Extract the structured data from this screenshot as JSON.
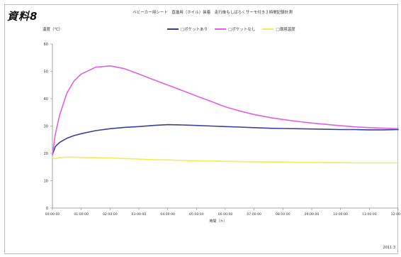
{
  "page": {
    "doc_label": "資料8",
    "footer": "2011.3"
  },
  "chart_data": {
    "type": "line",
    "title": "ベビーカー用シート　直進用（ホイル）装着　走行後もしばらくサーモ付き３時間記録計測",
    "xlabel": "時間（ｈ）",
    "ylabel": "温度（℃）",
    "ylim": [
      0,
      60
    ],
    "yticks": [
      0,
      10,
      20,
      30,
      40,
      50,
      60
    ],
    "x_ticks": [
      "00:00:00",
      "01:00:00",
      "02:00:00",
      "03:00:00",
      "04:00:00",
      "05:00:00",
      "06:00:00",
      "07:00:00",
      "08:00:00",
      "09:00:00",
      "10:00:00",
      "11:00:00",
      "12:00:00"
    ],
    "xlim": [
      0,
      12
    ],
    "grid": false,
    "legend_position": "top",
    "x": [
      0,
      0.1,
      0.25,
      0.5,
      0.75,
      1,
      1.5,
      2,
      2.5,
      3,
      3.5,
      4,
      4.5,
      5,
      5.5,
      6,
      6.5,
      7,
      7.5,
      8,
      8.5,
      9,
      9.5,
      10,
      10.5,
      11,
      11.5,
      12
    ],
    "series": [
      {
        "name": "□ポケットあり",
        "color": "#3b3f99",
        "values": [
          19.5,
          22.5,
          24.0,
          25.5,
          26.5,
          27.2,
          28.3,
          29.0,
          29.5,
          29.8,
          30.2,
          30.5,
          30.4,
          30.2,
          30.0,
          29.8,
          29.6,
          29.4,
          29.2,
          29.1,
          29.0,
          28.9,
          28.8,
          28.7,
          28.7,
          28.6,
          28.6,
          28.7
        ]
      },
      {
        "name": "□ポケットなし",
        "color": "#e060e0",
        "values": [
          19.5,
          27.0,
          34.0,
          42.0,
          46.5,
          49.0,
          51.5,
          52.0,
          51.0,
          49.0,
          47.0,
          45.0,
          43.0,
          41.0,
          39.0,
          37.0,
          35.5,
          34.2,
          33.2,
          32.4,
          31.7,
          31.1,
          30.6,
          30.1,
          29.7,
          29.4,
          29.2,
          29.0
        ]
      },
      {
        "name": "□環境温度",
        "color": "#eeee5a",
        "values": [
          18.5,
          18.0,
          18.5,
          18.6,
          18.6,
          18.5,
          18.4,
          18.3,
          18.1,
          17.9,
          17.7,
          17.6,
          17.4,
          17.3,
          17.2,
          17.1,
          17.0,
          16.9,
          16.8,
          16.8,
          16.7,
          16.7,
          16.6,
          16.6,
          16.5,
          16.5,
          16.5,
          16.5
        ]
      }
    ]
  }
}
